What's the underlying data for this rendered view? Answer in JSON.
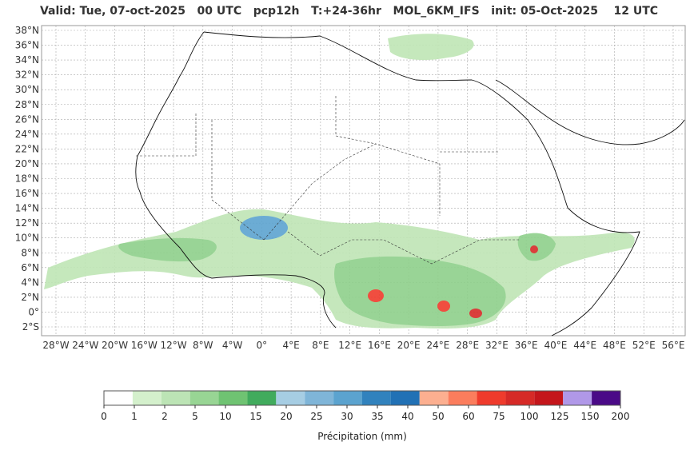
{
  "header": {
    "title": "Valid: Tue, 07-oct-2025   00 UTC   pcp12h   T:+24-36hr   MOL_6KM_IFS   init: 05-Oct-2025    12 UTC"
  },
  "map": {
    "lat_labels": [
      "38°N",
      "36°N",
      "34°N",
      "32°N",
      "30°N",
      "28°N",
      "26°N",
      "24°N",
      "22°N",
      "20°N",
      "18°N",
      "16°N",
      "14°N",
      "12°N",
      "10°N",
      "8°N",
      "6°N",
      "4°N",
      "2°N",
      "0°",
      "2°S"
    ],
    "lon_labels": [
      "28°W",
      "24°W",
      "20°W",
      "16°W",
      "12°W",
      "8°W",
      "4°W",
      "0°",
      "4°E",
      "8°E",
      "12°E",
      "16°E",
      "20°E",
      "24°E",
      "28°E",
      "32°E",
      "36°E",
      "40°E",
      "44°E",
      "48°E",
      "52°E",
      "56°E"
    ],
    "lat_range": [
      38,
      -2
    ],
    "lon_range": [
      -28,
      56
    ],
    "grid": true
  },
  "colorbar": {
    "label": "Précipitation (mm)",
    "ticks": [
      "0",
      "1",
      "2",
      "5",
      "10",
      "15",
      "20",
      "25",
      "30",
      "35",
      "40",
      "50",
      "60",
      "75",
      "100",
      "125",
      "150",
      "200"
    ],
    "colors": [
      "#ffffff",
      "#d4f0cc",
      "#bce4b5",
      "#98d594",
      "#6fc372",
      "#41ab5d",
      "#a6cde3",
      "#7fb5d8",
      "#5ba3cf",
      "#3182bd",
      "#2171b5",
      "#fcaf90",
      "#fb7d5d",
      "#ef3b2c",
      "#d62a27",
      "#c4161b",
      "#b098e8",
      "#4a0a87"
    ]
  }
}
